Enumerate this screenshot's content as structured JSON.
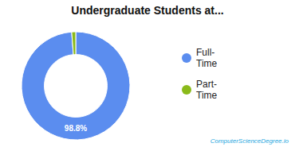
{
  "chart_data": {
    "type": "pie",
    "title": "Undergraduate Students at...",
    "categories": [
      "Full-\nTime",
      "Part-\nTime"
    ],
    "values": [
      98.8,
      1.2
    ],
    "colors": [
      "#5b8def",
      "#8aba1a"
    ],
    "legend": "right",
    "annotations": [
      {
        "text": "98.8%",
        "color": "#ffffff"
      },
      {
        "text": "ComputerScienceDegree.io",
        "color": "#29a8e0"
      }
    ]
  }
}
